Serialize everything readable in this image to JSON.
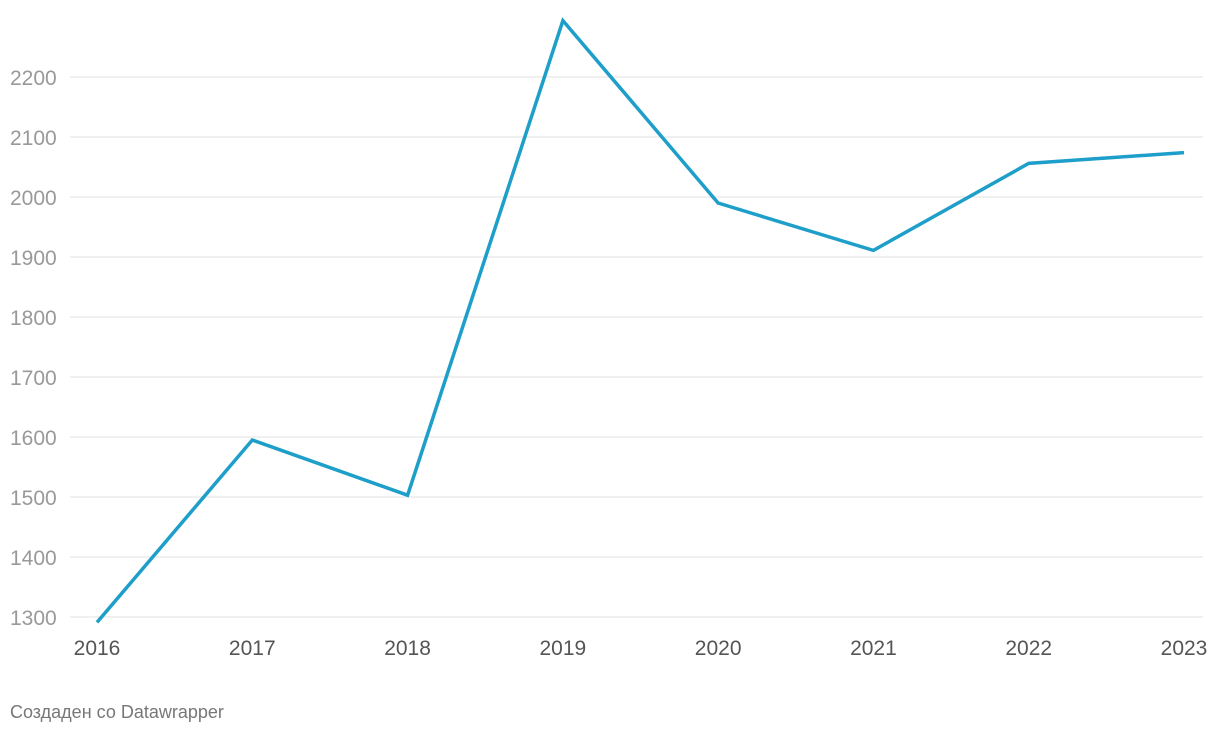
{
  "chart_data": {
    "type": "line",
    "x": [
      "2016",
      "2017",
      "2018",
      "2019",
      "2020",
      "2021",
      "2022",
      "2023"
    ],
    "series": [
      {
        "values": [
          1291,
          1595,
          1503,
          2294,
          1990,
          1911,
          2056,
          2074
        ],
        "color": "#1d9fc9"
      }
    ],
    "y_ticks": [
      1300,
      1400,
      1500,
      1600,
      1700,
      1800,
      1900,
      2000,
      2100,
      2200
    ],
    "ylim": [
      1300,
      2300
    ],
    "grid": true,
    "title": "",
    "xlabel": "",
    "ylabel": ""
  },
  "footer": {
    "credit": "Создаден со Datawrapper"
  }
}
